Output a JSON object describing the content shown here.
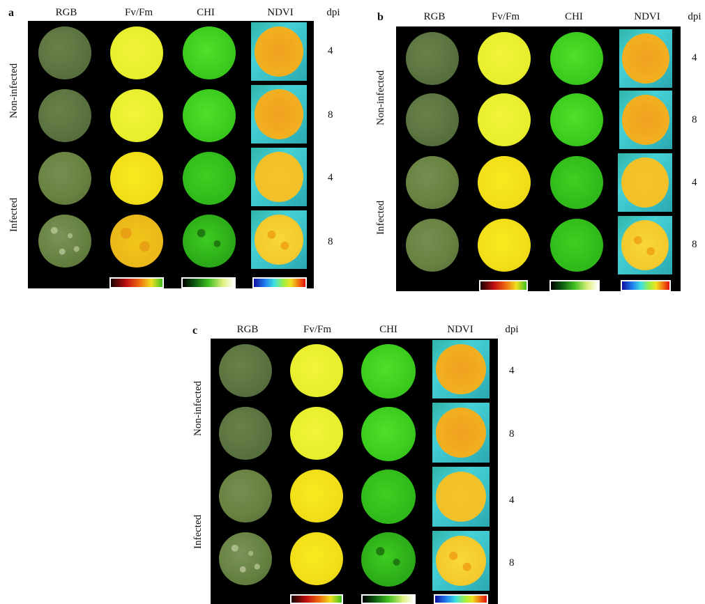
{
  "panels": [
    {
      "letter": "a"
    },
    {
      "letter": "b"
    },
    {
      "letter": "c"
    }
  ],
  "columns": [
    "RGB",
    "Fv/Fm",
    "CHI",
    "NDVI"
  ],
  "dpi_header": "dpi",
  "groups": [
    "Non-infected",
    "Infected"
  ],
  "dpi_values": [
    "4",
    "8",
    "4",
    "8"
  ],
  "colorbars": [
    "red-yellow-green scale",
    "black-green-white scale",
    "blue-red rainbow scale"
  ]
}
